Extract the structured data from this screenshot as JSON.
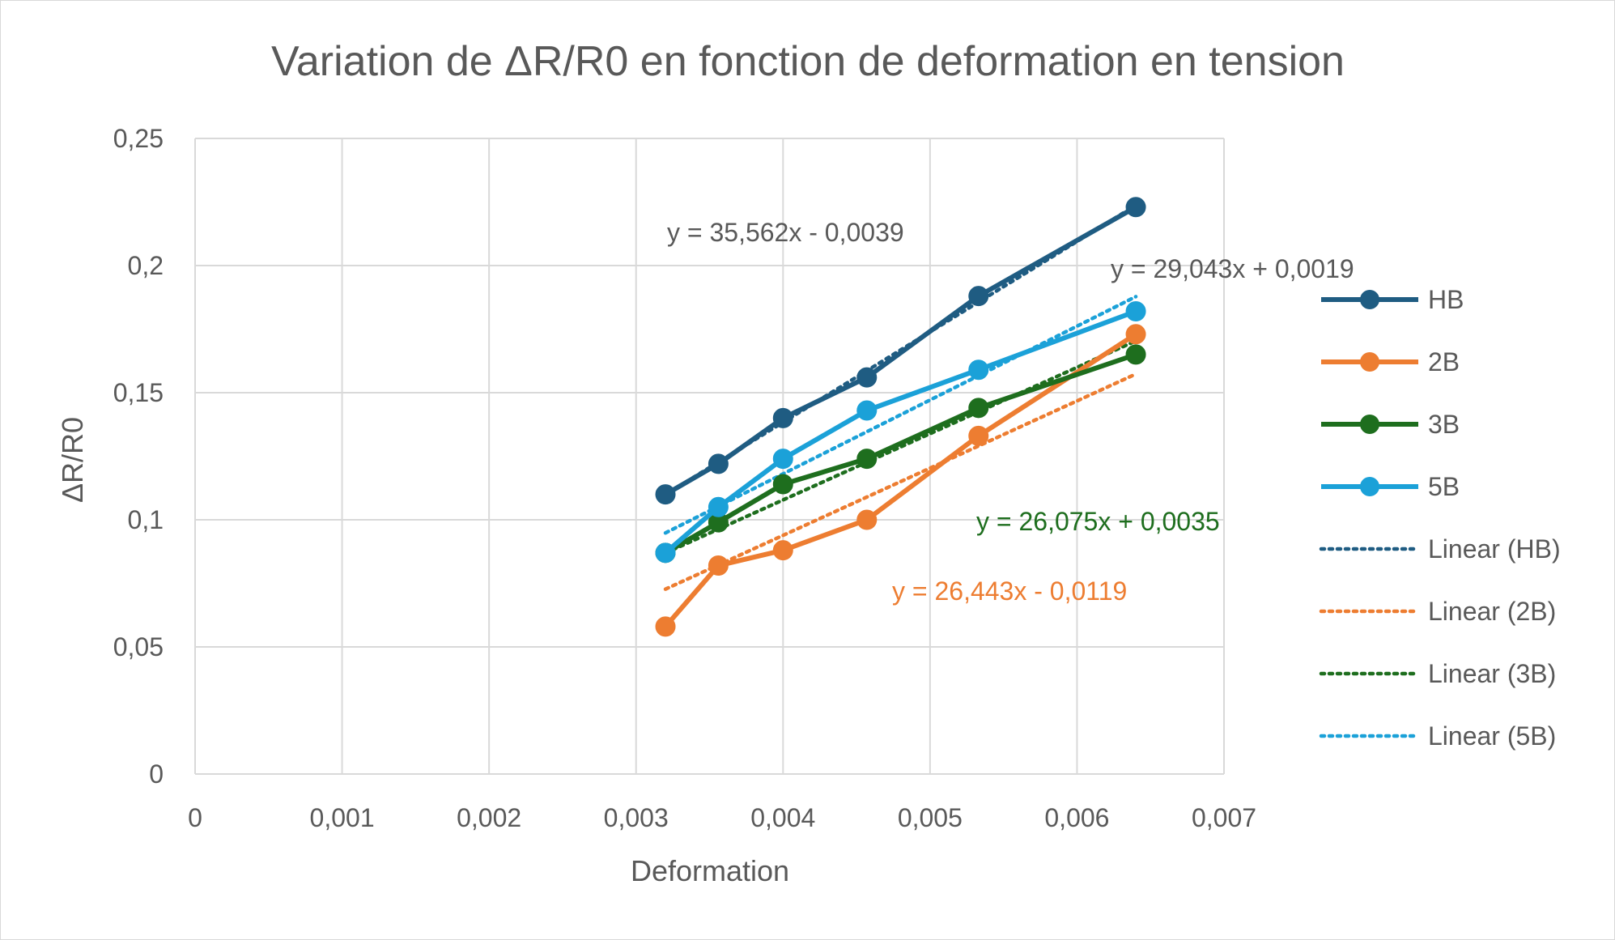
{
  "chart_data": {
    "type": "scatter",
    "title": "Variation de ΔR/R0 en fonction de deformation en tension",
    "xlabel": "Deformation",
    "ylabel": "ΔR/R0",
    "xlim": [
      0,
      0.007
    ],
    "ylim": [
      0,
      0.25
    ],
    "x_ticks": [
      "0",
      "0,001",
      "0,002",
      "0,003",
      "0,004",
      "0,005",
      "0,006",
      "0,007"
    ],
    "y_ticks": [
      "0",
      "0,05",
      "0,1",
      "0,15",
      "0,2",
      "0,25"
    ],
    "grid": true,
    "legend_position": "right",
    "series": [
      {
        "name": "HB",
        "color": "#1f5c82",
        "x": [
          0.0032,
          0.00356,
          0.004,
          0.00457,
          0.00533,
          0.0064
        ],
        "y": [
          0.11,
          0.122,
          0.14,
          0.156,
          0.188,
          0.223
        ]
      },
      {
        "name": "2B",
        "color": "#ed7d31",
        "x": [
          0.0032,
          0.00356,
          0.004,
          0.00457,
          0.00533,
          0.0064
        ],
        "y": [
          0.058,
          0.082,
          0.088,
          0.1,
          0.133,
          0.173
        ]
      },
      {
        "name": "3B",
        "color": "#1e6e1e",
        "x": [
          0.0032,
          0.00356,
          0.004,
          0.00457,
          0.00533,
          0.0064
        ],
        "y": [
          0.087,
          0.099,
          0.114,
          0.124,
          0.144,
          0.165
        ]
      },
      {
        "name": "5B",
        "color": "#1ba1d8",
        "x": [
          0.0032,
          0.00356,
          0.004,
          0.00457,
          0.00533,
          0.0064
        ],
        "y": [
          0.087,
          0.105,
          0.124,
          0.143,
          0.159,
          0.182
        ]
      }
    ],
    "trendlines": [
      {
        "name": "Linear (HB)",
        "color": "#1f5c82",
        "slope": 35.562,
        "intercept": -0.0039,
        "equation": "y = 35,562x - 0,0039",
        "eq_color": "#595959"
      },
      {
        "name": "Linear (2B)",
        "color": "#ed7d31",
        "slope": 26.443,
        "intercept": -0.0119,
        "equation": "y = 26,443x - 0,0119",
        "eq_color": "#ed7d31"
      },
      {
        "name": "Linear (3B)",
        "color": "#1e6e1e",
        "slope": 26.075,
        "intercept": 0.0035,
        "equation": "y = 26,075x + 0,0035",
        "eq_color": "#1e6e1e"
      },
      {
        "name": "Linear (5B)",
        "color": "#1ba1d8",
        "slope": 29.043,
        "intercept": 0.0019,
        "equation": "y = 29,043x + 0,0019",
        "eq_color": "#595959"
      }
    ]
  }
}
